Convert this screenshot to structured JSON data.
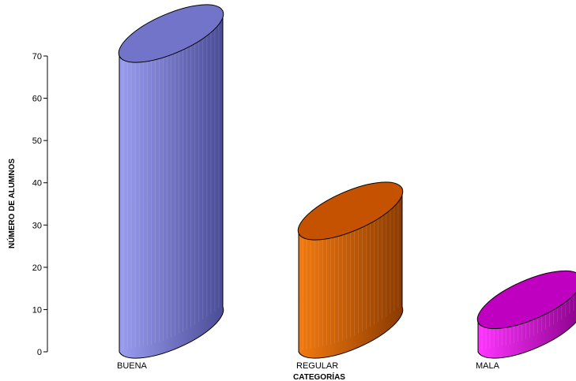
{
  "chart_data": {
    "type": "bar",
    "style": "3d-cylinder",
    "categories": [
      "BUENA",
      "REGULAR",
      "MALA"
    ],
    "values": [
      70,
      28,
      7
    ],
    "xlabel": "CATEGORÍAS",
    "ylabel": "NÚMERO DE ALUMNOS",
    "ylim": [
      0,
      70
    ],
    "yticks": [
      "0",
      "10",
      "20",
      "30",
      "40",
      "50",
      "60",
      "70"
    ],
    "grid": false,
    "legend": "none",
    "colors": [
      {
        "light": "#9a9df0",
        "dark": "#4a4c96",
        "top": "#7274c9"
      },
      {
        "light": "#f27a10",
        "dark": "#8a3a00",
        "top": "#c45200"
      },
      {
        "light": "#ff35ff",
        "dark": "#8a008a",
        "top": "#c000c0"
      }
    ]
  }
}
